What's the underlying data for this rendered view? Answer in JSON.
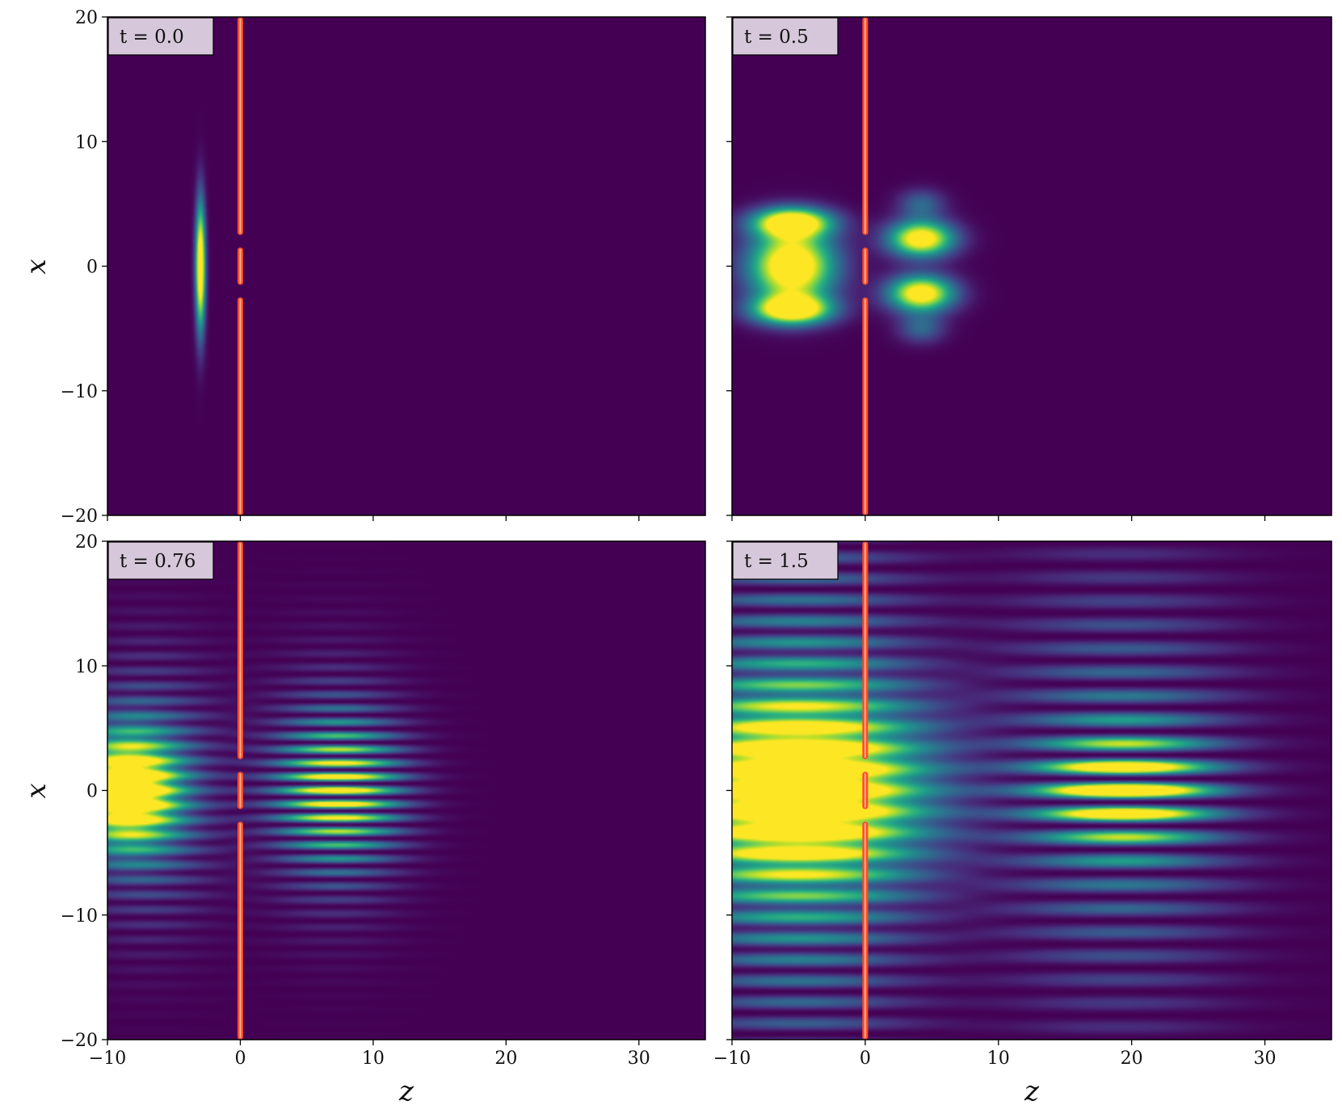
{
  "chart_data": [
    {
      "type": "heatmap",
      "panel": "top-left",
      "annotation": "t = 0.0",
      "xlim": [
        -10,
        35
      ],
      "ylim": [
        -20,
        20
      ],
      "xticks": [
        -10,
        0,
        10,
        20,
        30
      ],
      "yticks": [
        -20,
        -10,
        0,
        10,
        20
      ],
      "xtick_labels_shown": false,
      "ytick_labels_shown": true,
      "xlabel": "",
      "ylabel": "x",
      "colormap": "viridis",
      "barrier": {
        "z": 0,
        "slits": [
          [
            -2.5,
            -1.5
          ],
          [
            1.5,
            2.5
          ]
        ],
        "color": "#ff4b2b"
      },
      "blobs": [
        {
          "z": -3.0,
          "x": 0,
          "sz": 0.25,
          "sx": 3.5,
          "amp": 1.0,
          "fringe": 0
        }
      ]
    },
    {
      "type": "heatmap",
      "panel": "top-right",
      "annotation": "t = 0.5",
      "xlim": [
        -10,
        35
      ],
      "ylim": [
        -20,
        20
      ],
      "xticks": [
        -10,
        0,
        10,
        20,
        30
      ],
      "yticks": [
        -20,
        -10,
        0,
        10,
        20
      ],
      "xtick_labels_shown": false,
      "ytick_labels_shown": false,
      "xlabel": "",
      "ylabel": "",
      "colormap": "viridis",
      "barrier": {
        "z": 0,
        "slits": [
          [
            -2.5,
            -1.5
          ],
          [
            1.5,
            2.5
          ]
        ],
        "color": "#ff4b2b"
      },
      "blobs": [
        {
          "z": -5.5,
          "x": 0,
          "sz": 2.2,
          "sx": 2.0,
          "amp": 1.0,
          "fringe": 0
        },
        {
          "z": -5.5,
          "x": 3.5,
          "sz": 2.0,
          "sx": 0.8,
          "amp": 0.95,
          "fringe": 0
        },
        {
          "z": -5.5,
          "x": -3.5,
          "sz": 2.0,
          "sx": 0.8,
          "amp": 0.95,
          "fringe": 0
        },
        {
          "z": 4.2,
          "x": 2.2,
          "sz": 1.7,
          "sx": 1.0,
          "amp": 0.9,
          "fringe": 0
        },
        {
          "z": 4.2,
          "x": -2.2,
          "sz": 1.7,
          "sx": 1.0,
          "amp": 0.9,
          "fringe": 0
        },
        {
          "z": 4.2,
          "x": 5.0,
          "sz": 1.2,
          "sx": 0.8,
          "amp": 0.25,
          "fringe": 0
        },
        {
          "z": 4.2,
          "x": -5.0,
          "sz": 1.2,
          "sx": 0.8,
          "amp": 0.25,
          "fringe": 0
        }
      ]
    },
    {
      "type": "heatmap",
      "panel": "bottom-left",
      "annotation": "t = 0.76",
      "xlim": [
        -10,
        35
      ],
      "ylim": [
        -20,
        20
      ],
      "xticks": [
        -10,
        0,
        10,
        20,
        30
      ],
      "yticks": [
        -20,
        -10,
        0,
        10,
        20
      ],
      "xtick_labels_shown": true,
      "ytick_labels_shown": true,
      "xlabel": "z",
      "ylabel": "x",
      "colormap": "viridis",
      "barrier": {
        "z": 0,
        "slits": [
          [
            -2.5,
            -1.5
          ],
          [
            1.5,
            2.5
          ]
        ],
        "color": "#ff4b2b"
      },
      "blobs": [
        {
          "z": -8.5,
          "x": 0,
          "sz": 2.5,
          "sx": 3.0,
          "amp": 1.0,
          "fringe": 0
        },
        {
          "z": -7.0,
          "x": 0,
          "sz": 3.5,
          "sx": 7.0,
          "amp": 0.35,
          "fringe": 1.2
        },
        {
          "z": 7.5,
          "x": 0,
          "sz": 3.0,
          "sx": 3.5,
          "amp": 0.7,
          "fringe": 1.1
        },
        {
          "z": 7.0,
          "x": 0,
          "sz": 3.5,
          "sx": 6.5,
          "amp": 0.3,
          "fringe": 1.1
        }
      ]
    },
    {
      "type": "heatmap",
      "panel": "bottom-right",
      "annotation": "t = 1.5",
      "xlim": [
        -10,
        35
      ],
      "ylim": [
        -20,
        20
      ],
      "xticks": [
        -10,
        0,
        10,
        20,
        30
      ],
      "yticks": [
        -20,
        -10,
        0,
        10,
        20
      ],
      "xtick_labels_shown": true,
      "ytick_labels_shown": false,
      "xlabel": "z",
      "ylabel": "",
      "colormap": "viridis",
      "barrier": {
        "z": 0,
        "slits": [
          [
            -2.5,
            -1.5
          ],
          [
            1.5,
            2.5
          ]
        ],
        "color": "#ff4b2b"
      },
      "blobs": [
        {
          "z": -5.0,
          "x": 0,
          "sz": 6.0,
          "sx": 5.0,
          "amp": 1.0,
          "fringe": 0
        },
        {
          "z": -5.0,
          "x": 0,
          "sz": 6.0,
          "sx": 16.0,
          "amp": 0.45,
          "fringe": 1.7
        },
        {
          "z": 19.5,
          "x": 0,
          "sz": 4.0,
          "sx": 2.8,
          "amp": 0.95,
          "fringe": 1.9
        },
        {
          "z": 19.0,
          "x": 0,
          "sz": 6.0,
          "sx": 12.0,
          "amp": 0.35,
          "fringe": 1.9
        }
      ]
    }
  ],
  "ticks": {
    "x": [
      "−10",
      "0",
      "10",
      "20",
      "30"
    ],
    "y": [
      "20",
      "10",
      "0",
      "−10",
      "−20"
    ]
  },
  "labels": {
    "t0": "t = 0.0",
    "t1": "t = 0.5",
    "t2": "t = 0.76",
    "t3": "t = 1.5",
    "xlabel": "z",
    "ylabel": "x"
  },
  "colors": {
    "background": "#440154",
    "annotation_box": "#d6c7da",
    "barrier": "#ff4b2b"
  }
}
